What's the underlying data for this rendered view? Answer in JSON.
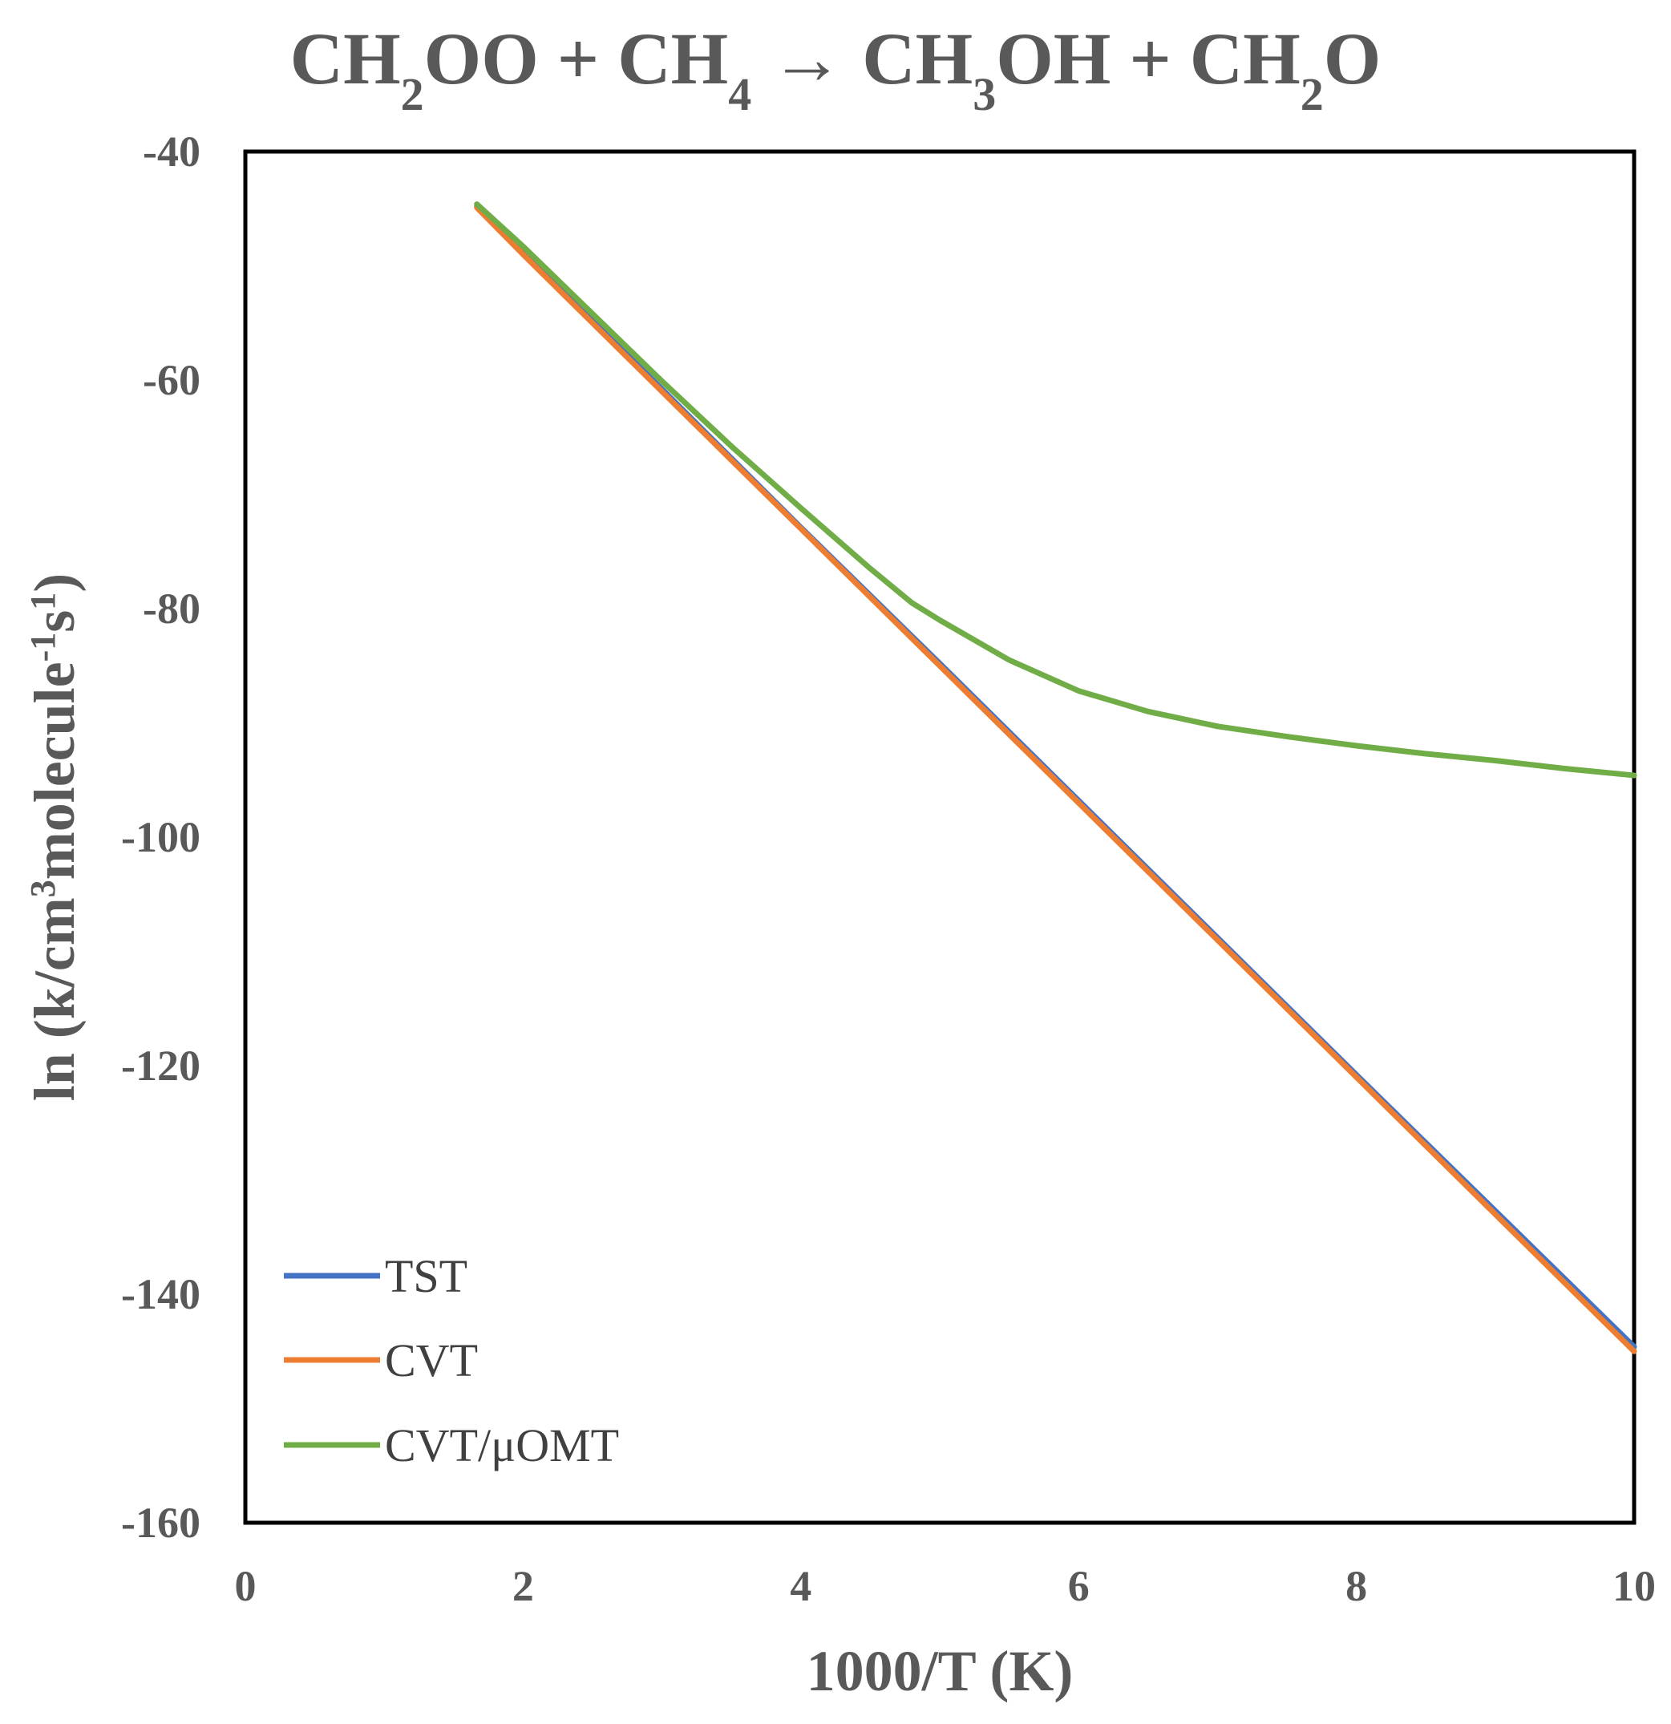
{
  "chart_data": {
    "type": "line",
    "title": "CH₂OO + CH₄ → CH₃OH + CH₂O",
    "title_parts": [
      "CH",
      "2",
      "OO + CH",
      "4",
      " → CH",
      "3",
      "OH + CH",
      "2",
      "O"
    ],
    "xlabel": "1000/T (K)",
    "ylabel": "ln (k/cm³molecule⁻¹s¹)",
    "ylabel_parts": [
      "ln (k/cm",
      "3",
      "molecule",
      "-1",
      "s",
      "1",
      ")"
    ],
    "xlim": [
      0,
      10
    ],
    "ylim": [
      -160,
      -40
    ],
    "xticks": [
      "0",
      "2",
      "4",
      "6",
      "8",
      "10"
    ],
    "yticks": [
      "-40",
      "-60",
      "-80",
      "-100",
      "-120",
      "-140",
      "-160"
    ],
    "grid": false,
    "legend_position": "bottom-left",
    "series": [
      {
        "name": "TST",
        "color": "#4472C4",
        "x": [
          1.667,
          2,
          3,
          4,
          5,
          6,
          7,
          8,
          9,
          10
        ],
        "y": [
          -44.8,
          -48.8,
          -60.8,
          -72.9,
          -84.8,
          -96.8,
          -108.8,
          -120.8,
          -132.7,
          -144.6
        ]
      },
      {
        "name": "CVT",
        "color": "#ED7D31",
        "x": [
          1.667,
          2,
          3,
          4,
          5,
          6,
          7,
          8,
          9,
          10
        ],
        "y": [
          -44.9,
          -49.0,
          -61.0,
          -73.0,
          -85.0,
          -97.0,
          -109.0,
          -121.0,
          -133.0,
          -145.0
        ]
      },
      {
        "name": "CVT/μOMT",
        "color": "#70AD47",
        "x": [
          1.667,
          2,
          2.5,
          3,
          3.5,
          4,
          4.5,
          4.8,
          5,
          5.5,
          6,
          6.5,
          7,
          7.5,
          8,
          8.5,
          9,
          9.5,
          10
        ],
        "y": [
          -44.6,
          -48.3,
          -54.2,
          -60.1,
          -65.8,
          -71.2,
          -76.5,
          -79.5,
          -81.0,
          -84.5,
          -87.2,
          -89.0,
          -90.3,
          -91.2,
          -92.0,
          -92.7,
          -93.3,
          -94.0,
          -94.6
        ]
      }
    ]
  }
}
